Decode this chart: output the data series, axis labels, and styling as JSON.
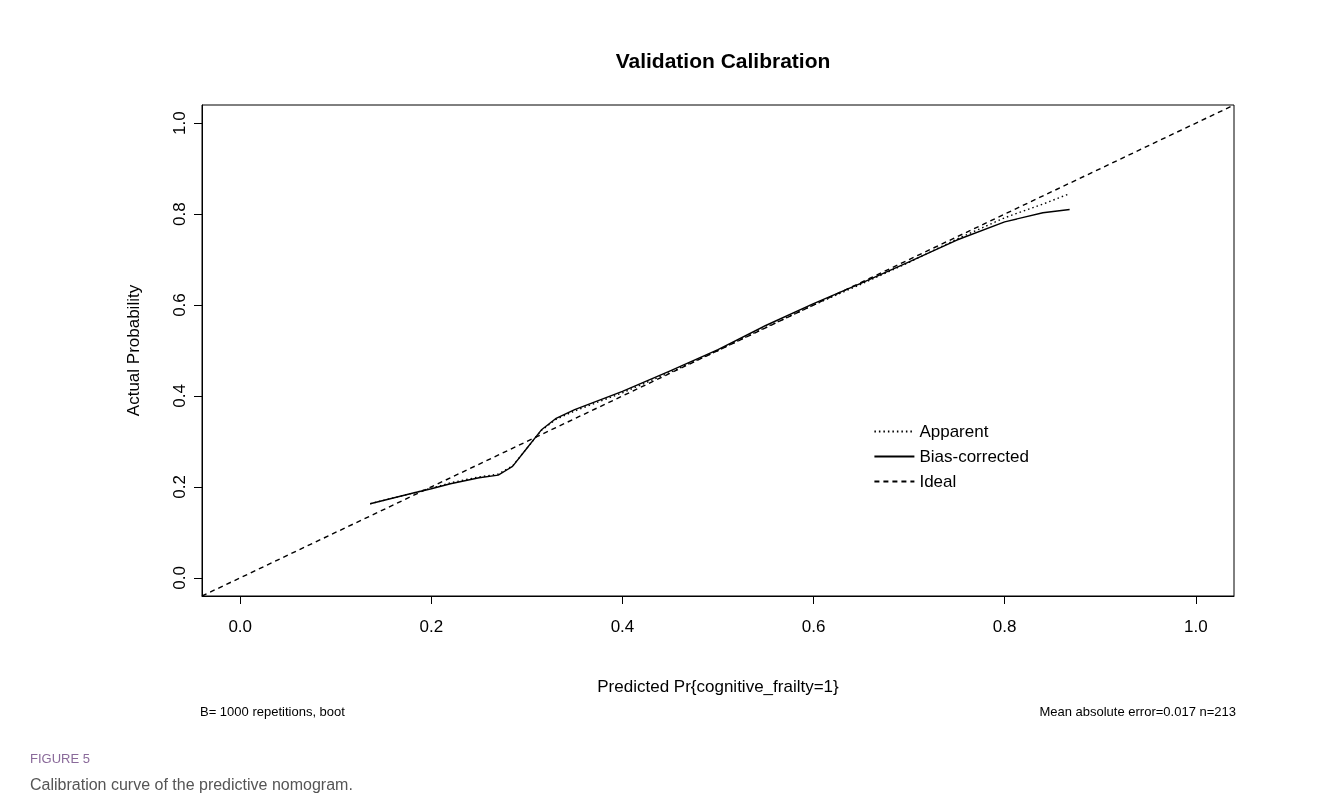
{
  "chart_data": {
    "type": "line",
    "title": "Validation Calibration",
    "xlabel": "Predicted Pr{cognitive_frailty=1}",
    "ylabel": "Actual Probability",
    "annotations": [
      "B= 1000 repetitions, boot",
      "Mean absolute error=0.017 n=213",
      "FIGURE 5",
      "Calibration curve of the predictive nomogram."
    ],
    "series": [
      {
        "name": "Apparent",
        "color": "#000000",
        "line_style": "dotted",
        "x": [
          0.136,
          0.18,
          0.2,
          0.22,
          0.25,
          0.27,
          0.285,
          0.3,
          0.315,
          0.33,
          0.35,
          0.4,
          0.45,
          0.5,
          0.55,
          0.6,
          0.65,
          0.7,
          0.75,
          0.8,
          0.84,
          0.868
        ],
        "values": [
          0.163,
          0.186,
          0.197,
          0.209,
          0.222,
          0.228,
          0.246,
          0.285,
          0.324,
          0.348,
          0.367,
          0.407,
          0.452,
          0.5,
          0.551,
          0.6,
          0.646,
          0.694,
          0.745,
          0.792,
          0.822,
          0.845
        ]
      },
      {
        "name": "Bias-corrected",
        "color": "#000000",
        "line_style": "solid",
        "x": [
          0.136,
          0.18,
          0.2,
          0.22,
          0.25,
          0.27,
          0.285,
          0.3,
          0.315,
          0.33,
          0.35,
          0.4,
          0.45,
          0.5,
          0.55,
          0.6,
          0.65,
          0.7,
          0.75,
          0.8,
          0.84,
          0.868
        ],
        "values": [
          0.163,
          0.186,
          0.196,
          0.207,
          0.22,
          0.226,
          0.245,
          0.285,
          0.325,
          0.35,
          0.37,
          0.41,
          0.455,
          0.502,
          0.555,
          0.603,
          0.648,
          0.695,
          0.743,
          0.783,
          0.803,
          0.81
        ]
      },
      {
        "name": "Ideal",
        "color": "#000000",
        "line_style": "dashed",
        "x": [
          -0.04,
          1.04
        ],
        "values": [
          -0.04,
          1.04
        ]
      }
    ],
    "xlim": [
      -0.04,
      1.04
    ],
    "ylim": [
      -0.04,
      1.04
    ],
    "xticks": [
      {
        "value": 0,
        "label": "0.0"
      },
      0.2,
      0.4,
      0.6,
      0.8,
      {
        "value": 1,
        "label": "1.0"
      }
    ],
    "yticks": [
      {
        "value": 0,
        "label": "0.0"
      },
      0.2,
      0.4,
      0.6,
      0.8,
      {
        "value": 1,
        "label": "1.0"
      }
    ],
    "grid": false,
    "legend": "bottom right",
    "marker": "none"
  }
}
